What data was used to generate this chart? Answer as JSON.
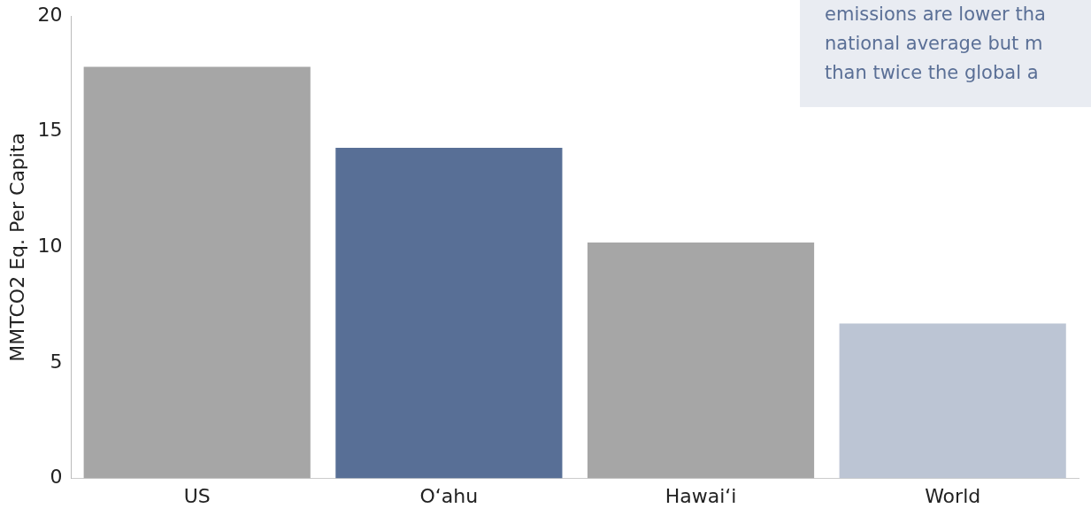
{
  "chart_data": {
    "type": "bar",
    "ylabel": "MMTCO2 Eq. Per Capita",
    "categories": [
      "US",
      "O‘ahu",
      "Hawai‘i",
      "World"
    ],
    "values": [
      17.8,
      14.3,
      10.2,
      6.7
    ],
    "colors": [
      "#a6a6a6",
      "#586f96",
      "#a6a6a6",
      "#bcc5d4"
    ],
    "ylim": [
      0,
      20
    ],
    "yticks": [
      0,
      5,
      10,
      15,
      20
    ],
    "grid": false,
    "legend": false,
    "annotations": [
      "emissions are lower tha",
      "national average but m",
      "than twice the global a"
    ]
  }
}
